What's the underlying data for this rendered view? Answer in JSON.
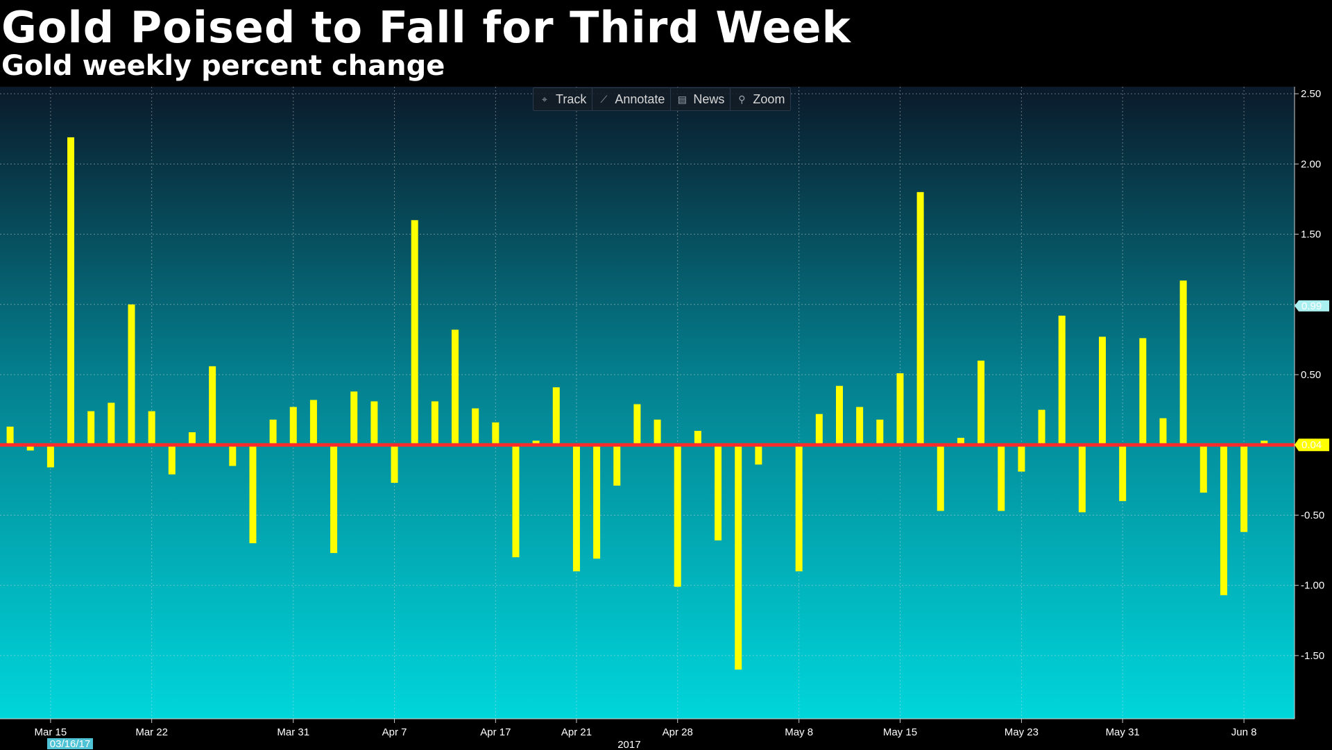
{
  "title": "Gold Poised to Fall for Third Week",
  "subtitle": "Gold weekly percent change",
  "toolbar": {
    "track": "Track",
    "annotate": "Annotate",
    "news": "News",
    "zoom": "Zoom"
  },
  "colors": {
    "bar": "#ffff00",
    "zero_line": "#ff2a2a",
    "background_top": "#0a1a2a",
    "background_bottom": "#00d8dd",
    "last_price_label": "#ffff00",
    "prev_label": "#aaf0f0"
  },
  "chart_data": {
    "type": "bar",
    "title": "Gold Poised to Fall for Third Week",
    "subtitle": "Gold weekly percent change",
    "xlabel": "2017",
    "ylabel": "",
    "ylim": [
      -1.95,
      2.55
    ],
    "y_ticks": [
      2.5,
      2.0,
      1.5,
      1.0,
      0.5,
      0.0,
      -0.5,
      -1.0,
      -1.5
    ],
    "y_tick_labels": [
      "2.50",
      "2.00",
      "1.50",
      "",
      "0.50",
      "0.00",
      "-0.50",
      "-1.00",
      "-1.50"
    ],
    "x_tick_labels": [
      "Mar 15",
      "Mar 22",
      "Mar 31",
      "Apr 7",
      "Apr 17",
      "Apr 21",
      "Apr 28",
      "May 8",
      "May 15",
      "May 23",
      "May 31",
      "Jun 8"
    ],
    "x_tick_index": [
      2,
      7,
      14,
      19,
      24,
      28,
      33,
      39,
      44,
      50,
      55,
      61
    ],
    "start_date_label": "03/16/17",
    "year_label": "2017",
    "last_value_label": "0.04",
    "reference_value_label": "0.99",
    "grid": true,
    "values": [
      0.13,
      -0.04,
      -0.16,
      2.19,
      0.24,
      0.3,
      1.0,
      0.24,
      -0.21,
      0.09,
      0.56,
      -0.15,
      -0.7,
      0.18,
      0.27,
      0.32,
      -0.77,
      0.38,
      0.31,
      -0.27,
      1.6,
      0.31,
      0.82,
      0.26,
      0.16,
      -0.8,
      0.03,
      0.41,
      -0.9,
      -0.81,
      -0.29,
      0.29,
      0.18,
      -1.01,
      0.1,
      -0.68,
      -1.6,
      -0.14,
      0.01,
      -0.9,
      0.22,
      0.42,
      0.27,
      0.18,
      0.51,
      1.8,
      -0.47,
      0.05,
      0.6,
      -0.47,
      -0.19,
      0.25,
      0.92,
      -0.48,
      0.77,
      -0.4,
      0.76,
      0.19,
      1.17,
      -0.34,
      -1.07,
      -0.62,
      0.03
    ]
  }
}
